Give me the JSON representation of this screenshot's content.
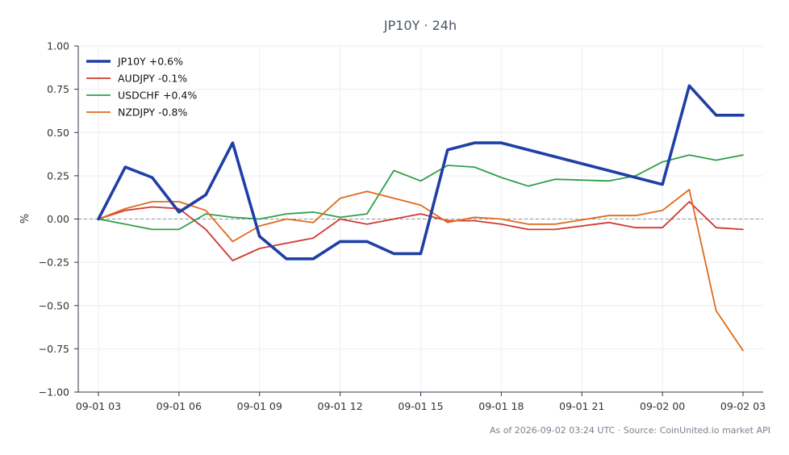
{
  "colors": {
    "background": "#ffffff",
    "grid": "#eceef3",
    "axis": "#2d3748",
    "zero_line": "#8a94a6",
    "title": "#4a5568",
    "footer": "#7b8190"
  },
  "chart_data": {
    "type": "line",
    "title": "JP10Y · 24h",
    "xlabel": "",
    "ylabel": "%",
    "ylim": [
      -1.0,
      1.0
    ],
    "xlim": [
      "2026-09-01 02:15",
      "2026-09-02 03:45"
    ],
    "yticks": [
      1.0,
      0.75,
      0.5,
      0.25,
      0.0,
      -0.25,
      -0.5,
      -0.75,
      -1.0
    ],
    "ytick_labels": [
      "1.00",
      "0.75",
      "0.50",
      "0.25",
      "0.00",
      "−0.25",
      "−0.50",
      "−0.75",
      "−1.00"
    ],
    "xticks": [
      "2026-09-01 03:00",
      "2026-09-01 06:00",
      "2026-09-01 09:00",
      "2026-09-01 12:00",
      "2026-09-01 15:00",
      "2026-09-01 18:00",
      "2026-09-01 21:00",
      "2026-09-02 00:00",
      "2026-09-02 03:00"
    ],
    "xtick_labels": [
      "09-01 03",
      "09-01 06",
      "09-01 09",
      "09-01 12",
      "09-01 15",
      "09-01 18",
      "09-01 21",
      "09-02 00",
      "09-02 03"
    ],
    "grid": true,
    "zero_line": true,
    "legend_position": "top-left",
    "series": [
      {
        "name": "JP10Y +0.6%",
        "color": "#1f3fa6",
        "emphasis": true,
        "points": [
          [
            "2026-09-01 03:00",
            0.0
          ],
          [
            "2026-09-01 04:00",
            0.3
          ],
          [
            "2026-09-01 05:00",
            0.24
          ],
          [
            "2026-09-01 06:00",
            0.04
          ],
          [
            "2026-09-01 07:00",
            0.14
          ],
          [
            "2026-09-01 08:00",
            0.44
          ],
          [
            "2026-09-01 09:00",
            -0.1
          ],
          [
            "2026-09-01 10:00",
            -0.23
          ],
          [
            "2026-09-01 11:00",
            -0.23
          ],
          [
            "2026-09-01 12:00",
            -0.13
          ],
          [
            "2026-09-01 13:00",
            -0.13
          ],
          [
            "2026-09-01 14:00",
            -0.2
          ],
          [
            "2026-09-01 15:00",
            -0.2
          ],
          [
            "2026-09-01 16:00",
            0.4
          ],
          [
            "2026-09-01 17:00",
            0.44
          ],
          [
            "2026-09-01 18:00",
            0.44
          ],
          [
            "2026-09-02 00:00",
            0.2
          ],
          [
            "2026-09-02 01:00",
            0.77
          ],
          [
            "2026-09-02 02:00",
            0.6
          ],
          [
            "2026-09-02 03:00",
            0.6
          ]
        ]
      },
      {
        "name": "AUDJPY -0.1%",
        "color": "#d03a30",
        "emphasis": false,
        "points": [
          [
            "2026-09-01 03:00",
            0.0
          ],
          [
            "2026-09-01 04:00",
            0.05
          ],
          [
            "2026-09-01 05:00",
            0.07
          ],
          [
            "2026-09-01 06:00",
            0.06
          ],
          [
            "2026-09-01 07:00",
            -0.06
          ],
          [
            "2026-09-01 08:00",
            -0.24
          ],
          [
            "2026-09-01 09:00",
            -0.17
          ],
          [
            "2026-09-01 10:00",
            -0.14
          ],
          [
            "2026-09-01 11:00",
            -0.11
          ],
          [
            "2026-09-01 12:00",
            0.0
          ],
          [
            "2026-09-01 13:00",
            -0.03
          ],
          [
            "2026-09-01 14:00",
            0.0
          ],
          [
            "2026-09-01 15:00",
            0.03
          ],
          [
            "2026-09-01 16:00",
            -0.01
          ],
          [
            "2026-09-01 17:00",
            -0.01
          ],
          [
            "2026-09-01 18:00",
            -0.03
          ],
          [
            "2026-09-01 19:00",
            -0.06
          ],
          [
            "2026-09-01 20:00",
            -0.06
          ],
          [
            "2026-09-01 22:00",
            -0.02
          ],
          [
            "2026-09-01 23:00",
            -0.05
          ],
          [
            "2026-09-02 00:00",
            -0.05
          ],
          [
            "2026-09-02 01:00",
            0.1
          ],
          [
            "2026-09-02 02:00",
            -0.05
          ],
          [
            "2026-09-02 03:00",
            -0.06
          ]
        ]
      },
      {
        "name": "USDCHF +0.4%",
        "color": "#2ea04a",
        "emphasis": false,
        "points": [
          [
            "2026-09-01 03:00",
            0.0
          ],
          [
            "2026-09-01 04:00",
            -0.03
          ],
          [
            "2026-09-01 05:00",
            -0.06
          ],
          [
            "2026-09-01 06:00",
            -0.06
          ],
          [
            "2026-09-01 07:00",
            0.03
          ],
          [
            "2026-09-01 08:00",
            0.01
          ],
          [
            "2026-09-01 09:00",
            0.0
          ],
          [
            "2026-09-01 10:00",
            0.03
          ],
          [
            "2026-09-01 11:00",
            0.04
          ],
          [
            "2026-09-01 12:00",
            0.01
          ],
          [
            "2026-09-01 13:00",
            0.03
          ],
          [
            "2026-09-01 14:00",
            0.28
          ],
          [
            "2026-09-01 15:00",
            0.22
          ],
          [
            "2026-09-01 16:00",
            0.31
          ],
          [
            "2026-09-01 17:00",
            0.3
          ],
          [
            "2026-09-01 18:00",
            0.24
          ],
          [
            "2026-09-01 19:00",
            0.19
          ],
          [
            "2026-09-01 20:00",
            0.23
          ],
          [
            "2026-09-01 22:00",
            0.22
          ],
          [
            "2026-09-01 23:00",
            0.25
          ],
          [
            "2026-09-02 00:00",
            0.33
          ],
          [
            "2026-09-02 01:00",
            0.37
          ],
          [
            "2026-09-02 02:00",
            0.34
          ],
          [
            "2026-09-02 03:00",
            0.37
          ]
        ]
      },
      {
        "name": "NZDJPY -0.8%",
        "color": "#e06a1c",
        "emphasis": false,
        "points": [
          [
            "2026-09-01 03:00",
            0.0
          ],
          [
            "2026-09-01 04:00",
            0.06
          ],
          [
            "2026-09-01 05:00",
            0.1
          ],
          [
            "2026-09-01 06:00",
            0.1
          ],
          [
            "2026-09-01 07:00",
            0.05
          ],
          [
            "2026-09-01 08:00",
            -0.13
          ],
          [
            "2026-09-01 09:00",
            -0.04
          ],
          [
            "2026-09-01 10:00",
            0.0
          ],
          [
            "2026-09-01 11:00",
            -0.02
          ],
          [
            "2026-09-01 12:00",
            0.12
          ],
          [
            "2026-09-01 13:00",
            0.16
          ],
          [
            "2026-09-01 14:00",
            0.12
          ],
          [
            "2026-09-01 15:00",
            0.08
          ],
          [
            "2026-09-01 16:00",
            -0.02
          ],
          [
            "2026-09-01 17:00",
            0.01
          ],
          [
            "2026-09-01 18:00",
            0.0
          ],
          [
            "2026-09-01 19:00",
            -0.03
          ],
          [
            "2026-09-01 20:00",
            -0.03
          ],
          [
            "2026-09-01 22:00",
            0.02
          ],
          [
            "2026-09-01 23:00",
            0.02
          ],
          [
            "2026-09-02 00:00",
            0.05
          ],
          [
            "2026-09-02 01:00",
            0.17
          ],
          [
            "2026-09-02 02:00",
            -0.53
          ],
          [
            "2026-09-02 03:00",
            -0.76
          ]
        ]
      }
    ],
    "footer": "As of 2026-09-02 03:24 UTC · Source: CoinUnited.io market API"
  }
}
